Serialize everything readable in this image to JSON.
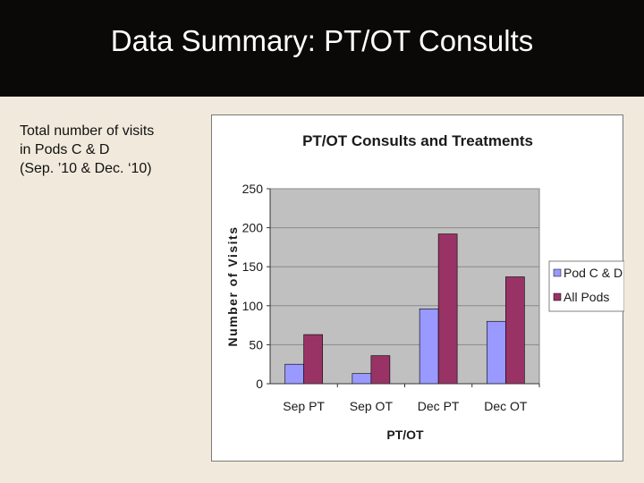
{
  "slide": {
    "title": "Data Summary: PT/OT Consults",
    "side_text": [
      "Total number of visits",
      "in Pods C & D",
      "(Sep. ’10 & Dec. ‘10)"
    ]
  },
  "colors": {
    "title_bar": "#0b0907",
    "page_bg": "#f1eadc",
    "plot_bg": "#c0c0c0",
    "pod_cd": "#9999ff",
    "all_pods": "#993366"
  },
  "chart_data": {
    "type": "bar",
    "title": "PT/OT Consults and Treatments",
    "xlabel": "PT/OT",
    "ylabel": "Number of Visits",
    "categories": [
      "Sep  PT",
      "Sep OT",
      "Dec PT",
      "Dec OT"
    ],
    "series": [
      {
        "name": "Pod C & D",
        "values": [
          25,
          13,
          96,
          80
        ]
      },
      {
        "name": "All Pods",
        "values": [
          63,
          36,
          192,
          137
        ]
      }
    ],
    "ylim": [
      0,
      250
    ],
    "yticks": [
      0,
      50,
      100,
      150,
      200,
      250
    ],
    "grid": true,
    "legend": "right"
  }
}
